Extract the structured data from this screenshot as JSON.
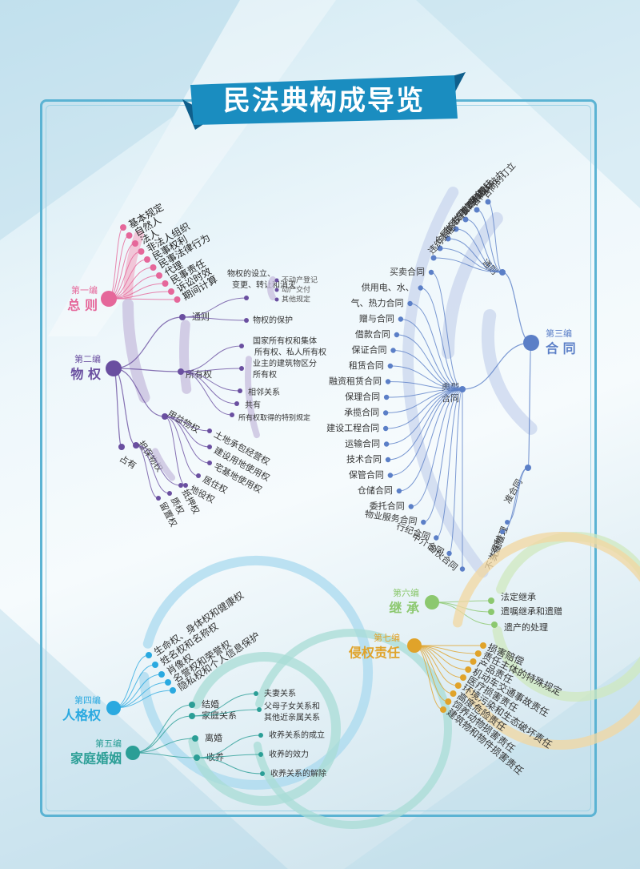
{
  "title": "民法典构成导览",
  "colors": {
    "frame": "#5bb3d3",
    "banner": "#1a8dc0",
    "pink": "#e5679a",
    "purple": "#6a4fa0",
    "purple_arc": "#c7bedd",
    "blue": "#5b7fc7",
    "blue_arc": "#c9d6ee",
    "green": "#8cc86f",
    "orange": "#e0a32a",
    "cyan": "#2aa9e0",
    "teal": "#2b9e96"
  },
  "part1": {
    "prefix": "第一编",
    "name": "总 则",
    "items": [
      "基本规定",
      "自然人",
      "法人",
      "非法人组织",
      "民事权利",
      "民事法律行为",
      "代理",
      "民事责任",
      "诉讼时效",
      "期间计算"
    ]
  },
  "part2": {
    "prefix": "第二编",
    "name": "物 权",
    "branches": [
      "通则",
      "所有权",
      "用益物权",
      "担保物权",
      "占有"
    ],
    "tongze": [
      "物权的设立、",
      "变更、转让和消灭",
      "物权的保护"
    ],
    "dengji": [
      "不动产登记",
      "动产交付",
      "其他规定"
    ],
    "suoyou": [
      "国家所有权和集体",
      "所有权、私人所有权",
      "业主的建筑物区分",
      "所有权",
      "相邻关系",
      "共有",
      "所有权取得的特别规定"
    ],
    "yongyi": [
      "土地承包经营权",
      "建设用地使用权",
      "宅基地使用权",
      "居住权",
      "地役权"
    ],
    "danbao": [
      "抵押权",
      "质权",
      "留置权"
    ]
  },
  "part3": {
    "prefix": "第三编",
    "name": "合 同",
    "branches": [
      "通则",
      "典型合同",
      "准合同"
    ],
    "tongze": [
      "合同的订立",
      "合同的效力",
      "合同的履行",
      "合同的保全",
      "合同的变更和转让",
      "合同的权利义务终止",
      "违约责任"
    ],
    "dianxing": [
      "买卖合同",
      "供用电、水、",
      "气、热力合同",
      "赠与合同",
      "借款合同",
      "保证合同",
      "租赁合同",
      "融资租赁合同",
      "保理合同",
      "承揽合同",
      "建设工程合同",
      "运输合同",
      "技术合同",
      "保管合同",
      "仓储合同",
      "委托合同",
      "物业服务合同",
      "行纪合同",
      "中介合同",
      "合伙合同"
    ],
    "zhun": [
      "无因管理",
      "不当得利"
    ]
  },
  "part4": {
    "prefix": "第四编",
    "name": "人格权",
    "items": [
      "生命权、身体权和健康权",
      "姓名权和名称权",
      "肖像权",
      "名誉权和荣誉权",
      "隐私权和个人信息保护"
    ]
  },
  "part5": {
    "prefix": "第五编",
    "name": "家庭婚姻",
    "branches": [
      "结婚",
      "家庭关系",
      "离婚",
      "收养"
    ],
    "jiating": [
      "夫妻关系",
      "父母子女关系和",
      "其他近亲属关系"
    ],
    "shouyang": [
      "收养关系的成立",
      "收养的效力",
      "收养关系的解除"
    ]
  },
  "part6": {
    "prefix": "第六编",
    "name": "继 承",
    "items": [
      "法定继承",
      "遗嘱继承和遗赠",
      "遗产的处理"
    ]
  },
  "part7": {
    "prefix": "第七编",
    "name": "侵权责任",
    "items": [
      "损害赔偿",
      "责任主体的特殊规定",
      "产品责任",
      "机动车交通事故责任",
      "医疗损害责任",
      "环境污染和生态破坏责任",
      "高度危险责任",
      "饲养动物损害责任",
      "建筑物和物件损害责任"
    ]
  }
}
